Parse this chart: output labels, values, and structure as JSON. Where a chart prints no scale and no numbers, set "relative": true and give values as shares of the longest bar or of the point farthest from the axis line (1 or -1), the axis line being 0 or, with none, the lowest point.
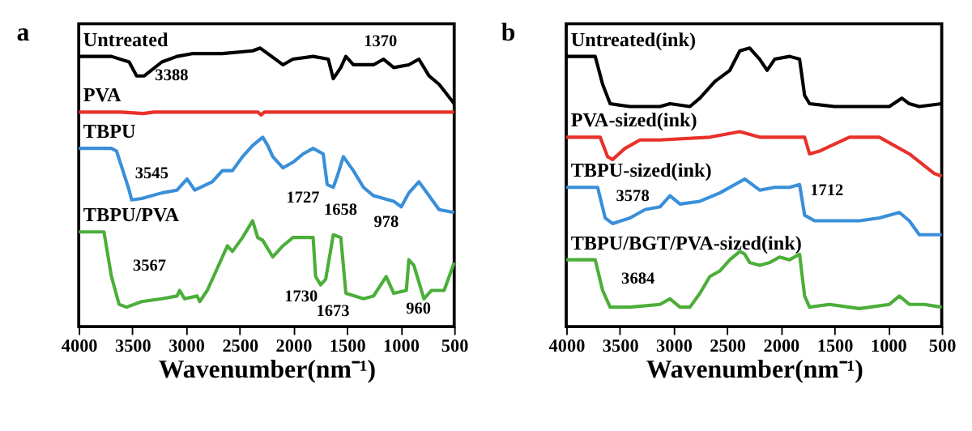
{
  "chart_data": [
    {
      "type": "line",
      "title": "a",
      "xlabel": "Wavenumber(nm⁻¹)",
      "relative": true,
      "xlim": [
        4000,
        500
      ],
      "xticks": [
        4000,
        3500,
        3000,
        2500,
        2000,
        1500,
        1000,
        500
      ],
      "grid": false,
      "marker": "none",
      "line_style": "solid",
      "series": [
        {
          "name": "Untreated",
          "color": "#000000",
          "x": [
            4000,
            3695,
            3530,
            3460,
            3389,
            3225,
            3084,
            2943,
            2661,
            2379,
            2309,
            2238,
            2097,
            2003,
            1815,
            1674,
            1627,
            1557,
            1510,
            1440,
            1346,
            1252,
            1158,
            1064,
            923,
            829,
            735,
            641,
            500
          ],
          "values": [
            0.97,
            0.97,
            0.95,
            0.9,
            0.9,
            0.95,
            0.97,
            0.98,
            0.98,
            0.99,
            1.0,
            0.98,
            0.94,
            0.96,
            0.97,
            0.96,
            0.89,
            0.93,
            0.97,
            0.94,
            0.94,
            0.94,
            0.96,
            0.93,
            0.94,
            0.96,
            0.9,
            0.87,
            0.8
          ]
        },
        {
          "name": "PVA",
          "color": "#e8312a",
          "x": [
            4000,
            3600,
            3400,
            3300,
            2800,
            2330,
            2300,
            2270,
            1800,
            1500,
            1000,
            500
          ],
          "values": [
            0.77,
            0.77,
            0.765,
            0.77,
            0.77,
            0.77,
            0.76,
            0.77,
            0.77,
            0.77,
            0.77,
            0.77
          ]
        },
        {
          "name": "TBPU",
          "color": "#3a8fd9",
          "x": [
            4000,
            3695,
            3647,
            3530,
            3507,
            3413,
            3225,
            3084,
            2990,
            2919,
            2755,
            2661,
            2567,
            2473,
            2379,
            2285,
            2238,
            2191,
            2097,
            2003,
            1909,
            1815,
            1721,
            1684,
            1627,
            1590,
            1533,
            1440,
            1346,
            1252,
            1064,
            993,
            923,
            829,
            735,
            641,
            500
          ],
          "values": [
            0.64,
            0.64,
            0.63,
            0.49,
            0.455,
            0.46,
            0.48,
            0.49,
            0.53,
            0.49,
            0.52,
            0.56,
            0.56,
            0.61,
            0.65,
            0.68,
            0.65,
            0.61,
            0.57,
            0.59,
            0.62,
            0.64,
            0.62,
            0.51,
            0.5,
            0.54,
            0.61,
            0.56,
            0.5,
            0.47,
            0.45,
            0.43,
            0.48,
            0.52,
            0.47,
            0.42,
            0.41
          ]
        },
        {
          "name": "TBPU/PVA",
          "color": "#4cae3a",
          "x": [
            4000,
            3765,
            3695,
            3624,
            3554,
            3413,
            3225,
            3084,
            3060,
            3013,
            2896,
            2872,
            2802,
            2708,
            2614,
            2567,
            2473,
            2379,
            2332,
            2285,
            2191,
            2097,
            2003,
            1862,
            1815,
            1792,
            1745,
            1698,
            1627,
            1557,
            1510,
            1346,
            1252,
            1134,
            1064,
            946,
            923,
            876,
            782,
            712,
            594,
            500
          ],
          "values": [
            0.34,
            0.34,
            0.18,
            0.08,
            0.07,
            0.09,
            0.1,
            0.11,
            0.13,
            0.1,
            0.11,
            0.09,
            0.13,
            0.21,
            0.29,
            0.27,
            0.32,
            0.38,
            0.32,
            0.31,
            0.25,
            0.29,
            0.32,
            0.32,
            0.32,
            0.18,
            0.15,
            0.17,
            0.33,
            0.32,
            0.12,
            0.1,
            0.11,
            0.18,
            0.12,
            0.13,
            0.24,
            0.22,
            0.1,
            0.13,
            0.13,
            0.23
          ]
        }
      ],
      "annotations": [
        {
          "text": "1370",
          "x": 1370,
          "y": 0.94
        },
        {
          "text": "3388",
          "x": 3388,
          "y": 0.9
        },
        {
          "text": "3545",
          "x": 3545,
          "y": 0.5
        },
        {
          "text": "1727",
          "x": 1727,
          "y": 0.62
        },
        {
          "text": "1658",
          "x": 1658,
          "y": 0.505
        },
        {
          "text": "978",
          "x": 978,
          "y": 0.44
        },
        {
          "text": "3567",
          "x": 3567,
          "y": 0.07
        },
        {
          "text": "1730",
          "x": 1730,
          "y": 0.155
        },
        {
          "text": "1673",
          "x": 1673,
          "y": 0.23
        },
        {
          "text": "960",
          "x": 960,
          "y": 0.15
        }
      ]
    },
    {
      "type": "line",
      "title": "b",
      "xlabel": "Wavenumber(nm⁻¹)",
      "relative": true,
      "xlim": [
        4000,
        500
      ],
      "xticks": [
        4000,
        3500,
        3000,
        2500,
        2000,
        1500,
        1000,
        500
      ],
      "grid": false,
      "marker": "none",
      "line_style": "solid",
      "series": [
        {
          "name": "Untreated(ink)",
          "color": "#000000",
          "x": [
            4000,
            3730,
            3661,
            3591,
            3405,
            3126,
            3033,
            2847,
            2754,
            2615,
            2475,
            2382,
            2290,
            2197,
            2127,
            2057,
            1918,
            1825,
            1778,
            1732,
            1499,
            1267,
            988,
            872,
            802,
            709,
            500
          ],
          "values": [
            0.97,
            0.97,
            0.87,
            0.8,
            0.79,
            0.79,
            0.8,
            0.79,
            0.82,
            0.88,
            0.92,
            0.99,
            1.0,
            0.96,
            0.92,
            0.96,
            0.97,
            0.96,
            0.83,
            0.8,
            0.79,
            0.79,
            0.79,
            0.82,
            0.8,
            0.79,
            0.8
          ]
        },
        {
          "name": "PVA-sized(ink)",
          "color": "#e8312a",
          "x": [
            4000,
            3684,
            3614,
            3568,
            3452,
            3312,
            3126,
            2661,
            2382,
            2197,
            1964,
            1778,
            1732,
            1639,
            1360,
            1081,
            802,
            570,
            500
          ],
          "values": [
            0.68,
            0.68,
            0.61,
            0.6,
            0.64,
            0.67,
            0.67,
            0.68,
            0.7,
            0.68,
            0.68,
            0.68,
            0.62,
            0.63,
            0.68,
            0.68,
            0.62,
            0.55,
            0.54
          ]
        },
        {
          "name": "TBPU-sized(ink)",
          "color": "#3a8fd9",
          "x": [
            4000,
            3707,
            3637,
            3568,
            3405,
            3266,
            3126,
            3033,
            2940,
            2754,
            2568,
            2336,
            2197,
            2057,
            1918,
            1825,
            1778,
            1685,
            1499,
            1267,
            1081,
            895,
            802,
            709,
            500
          ],
          "values": [
            0.5,
            0.5,
            0.39,
            0.37,
            0.39,
            0.42,
            0.43,
            0.47,
            0.44,
            0.45,
            0.48,
            0.53,
            0.49,
            0.5,
            0.5,
            0.51,
            0.4,
            0.38,
            0.38,
            0.38,
            0.39,
            0.41,
            0.38,
            0.33,
            0.33
          ]
        },
        {
          "name": "TBPU/BGT/PVA-sized(ink)",
          "color": "#4cae3a",
          "x": [
            4000,
            3730,
            3661,
            3591,
            3405,
            3126,
            3033,
            2940,
            2847,
            2754,
            2661,
            2568,
            2475,
            2382,
            2336,
            2290,
            2197,
            2104,
            2011,
            1918,
            1825,
            1778,
            1732,
            1546,
            1267,
            988,
            895,
            802,
            663,
            500
          ],
          "values": [
            0.24,
            0.24,
            0.13,
            0.07,
            0.07,
            0.08,
            0.1,
            0.07,
            0.07,
            0.12,
            0.18,
            0.2,
            0.24,
            0.27,
            0.26,
            0.23,
            0.22,
            0.23,
            0.25,
            0.24,
            0.26,
            0.11,
            0.07,
            0.08,
            0.065,
            0.08,
            0.11,
            0.08,
            0.08,
            0.07
          ]
        }
      ],
      "annotations": [
        {
          "text": "3578",
          "x": 3578,
          "y": 0.37
        },
        {
          "text": "1712",
          "x": 1712,
          "y": 0.39
        },
        {
          "text": "3684",
          "x": 3684,
          "y": 0.17
        }
      ]
    }
  ]
}
